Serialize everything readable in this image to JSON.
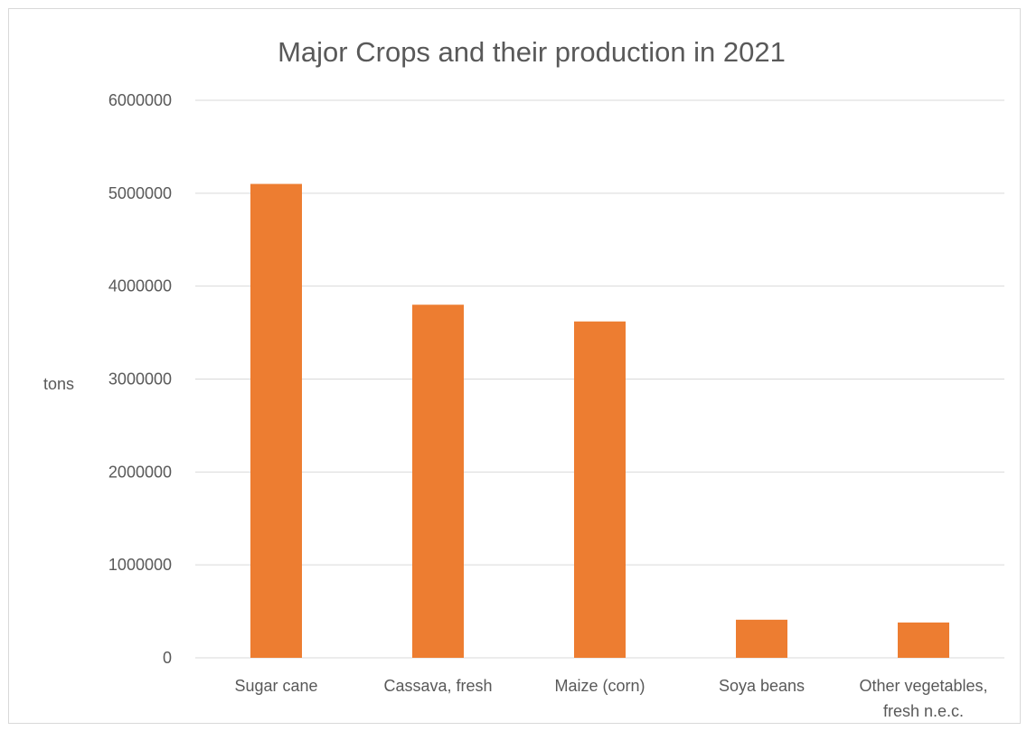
{
  "chart_data": {
    "type": "bar",
    "title": "Major Crops and their production in 2021",
    "xlabel": "",
    "ylabel": "tons",
    "categories": [
      "Sugar cane",
      "Cassava, fresh",
      "Maize (corn)",
      "Soya beans",
      "Other vegetables, fresh n.e.c."
    ],
    "category_lines": [
      [
        "Sugar cane"
      ],
      [
        "Cassava, fresh"
      ],
      [
        "Maize (corn)"
      ],
      [
        "Soya beans"
      ],
      [
        "Other vegetables,",
        "fresh n.e.c."
      ]
    ],
    "values": [
      5100000,
      3800000,
      3620000,
      410000,
      380000
    ],
    "ylim": [
      0,
      6000000
    ],
    "yticks": [
      0,
      1000000,
      2000000,
      3000000,
      4000000,
      5000000,
      6000000
    ],
    "ytick_labels": [
      "0",
      "1000000",
      "2000000",
      "3000000",
      "4000000",
      "5000000",
      "6000000"
    ],
    "grid": true,
    "legend": "none",
    "bar_color": "#ED7D31",
    "gridline_color": "#d9d9d9",
    "text_color": "#595959"
  }
}
